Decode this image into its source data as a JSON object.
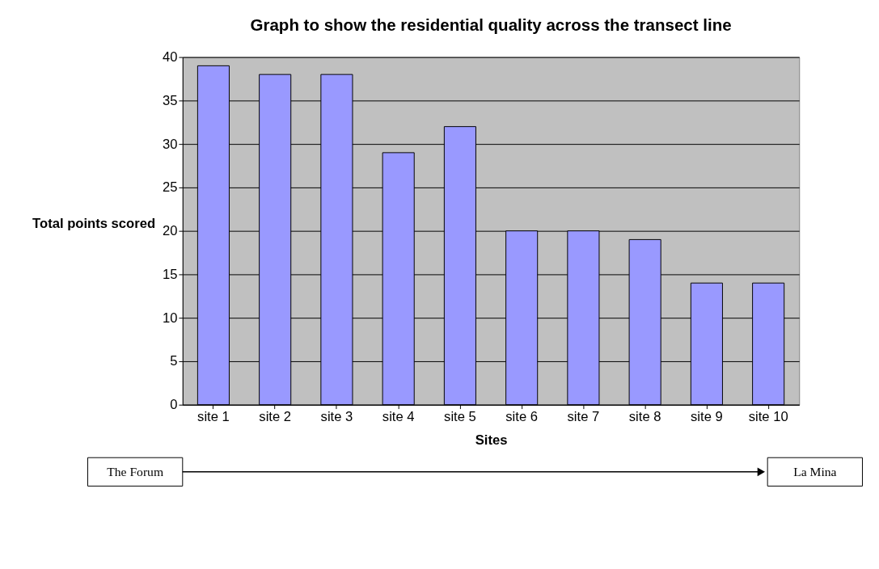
{
  "chart_data": {
    "type": "bar",
    "title": "Graph to show the residential quality across the transect line",
    "xlabel": "Sites",
    "ylabel": "Total points scored",
    "categories": [
      "site 1",
      "site 2",
      "site 3",
      "site 4",
      "site 5",
      "site 6",
      "site 7",
      "site 8",
      "site 9",
      "site 10"
    ],
    "values": [
      39,
      38,
      38,
      29,
      32,
      20,
      20,
      19,
      14,
      14
    ],
    "color": "#9999ff",
    "ylim": [
      0,
      40
    ],
    "yticks": [
      0,
      5,
      10,
      15,
      20,
      25,
      30,
      35,
      40
    ],
    "grid": "y",
    "annotations": [
      "The Forum",
      "La Mina"
    ]
  }
}
